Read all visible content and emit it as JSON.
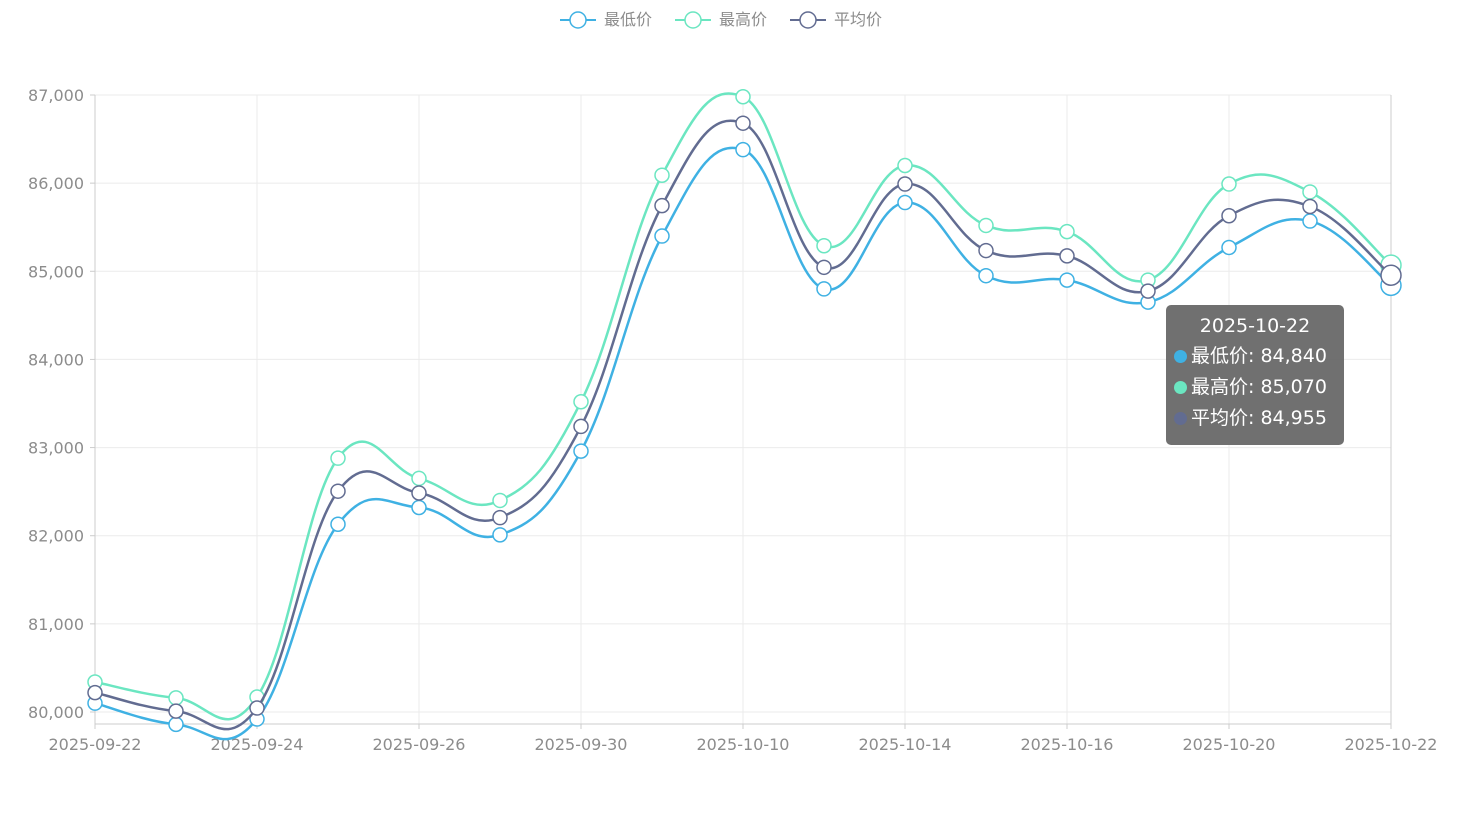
{
  "chart_data": {
    "type": "line",
    "smooth": true,
    "x": [
      "2025-09-22",
      "2025-09-23",
      "2025-09-24",
      "2025-09-25",
      "2025-09-26",
      "2025-09-27",
      "2025-09-30",
      "2025-10-09",
      "2025-10-10",
      "2025-10-13",
      "2025-10-14",
      "2025-10-15",
      "2025-10-16",
      "2025-10-17",
      "2025-10-20",
      "2025-10-21",
      "2025-10-22"
    ],
    "xtick_labels": [
      "2025-09-22",
      "2025-09-24",
      "2025-09-26",
      "2025-09-30",
      "2025-10-10",
      "2025-10-14",
      "2025-10-16",
      "2025-10-20",
      "2025-10-22"
    ],
    "ylim": [
      80000,
      87000
    ],
    "yticks": [
      "80,000",
      "81,000",
      "82,000",
      "83,000",
      "84,000",
      "85,000",
      "86,000",
      "87,000"
    ],
    "grid": true,
    "legend_position": "top-center",
    "series": [
      {
        "name": "最低价",
        "color": "#3fb1e3",
        "values": [
          80100,
          79860,
          79920,
          82130,
          82320,
          82010,
          82960,
          85400,
          86380,
          84800,
          85780,
          84950,
          84900,
          84650,
          85270,
          85570,
          84840
        ]
      },
      {
        "name": "最高价",
        "color": "#6be6c1",
        "values": [
          80340,
          80160,
          80170,
          82880,
          82650,
          82400,
          83520,
          86090,
          86980,
          85290,
          86200,
          85520,
          85450,
          84900,
          85990,
          85900,
          85070
        ]
      },
      {
        "name": "平均价",
        "color": "#626c91",
        "values": [
          80220,
          80010,
          80045,
          82505,
          82485,
          82205,
          83240,
          85745,
          86680,
          85045,
          85990,
          85235,
          85175,
          84775,
          85630,
          85735,
          84955
        ]
      }
    ],
    "tooltip": {
      "title": "2025-10-22",
      "rows": [
        {
          "label": "最低价: 84,840",
          "color": "#3fb1e3"
        },
        {
          "label": "最高价: 85,070",
          "color": "#6be6c1"
        },
        {
          "label": "平均价: 84,955",
          "color": "#626c91"
        }
      ]
    }
  }
}
